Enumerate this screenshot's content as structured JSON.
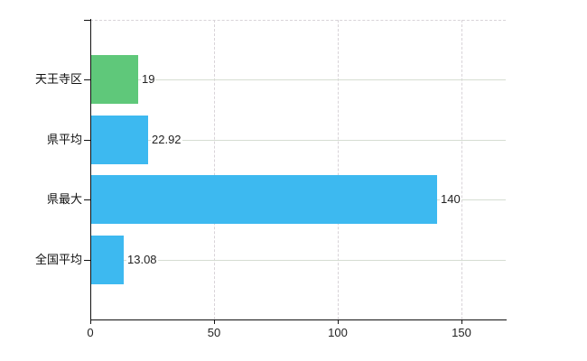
{
  "chart_data": {
    "type": "bar",
    "orientation": "horizontal",
    "title": "",
    "xlabel": "",
    "ylabel": "",
    "categories": [
      "天王寺区",
      "県平均",
      "県最大",
      "全国平均"
    ],
    "values": [
      19,
      22.92,
      140,
      13.08
    ],
    "value_labels": [
      "19",
      "22.92",
      "140",
      "13.08"
    ],
    "bar_colors": [
      "#5fc87a",
      "#3db9f0",
      "#3db9f0",
      "#3db9f0"
    ],
    "xlim": [
      0,
      168
    ],
    "x_tick_values": [
      0,
      50,
      100,
      150
    ],
    "x_tick_labels": [
      "0",
      "50",
      "100",
      "150"
    ],
    "grid": {
      "vertical_style": "dashed",
      "horizontal_style": "solid",
      "top_border": "dashed",
      "legend": "none"
    }
  },
  "colors": {
    "bar_blue": "#3db9f0",
    "bar_green": "#5fc87a",
    "axis": "#111111",
    "grid_solid": "#d6ddd2",
    "grid_dashed": "#d8d3d8",
    "text": "#222222",
    "background": "#ffffff"
  }
}
